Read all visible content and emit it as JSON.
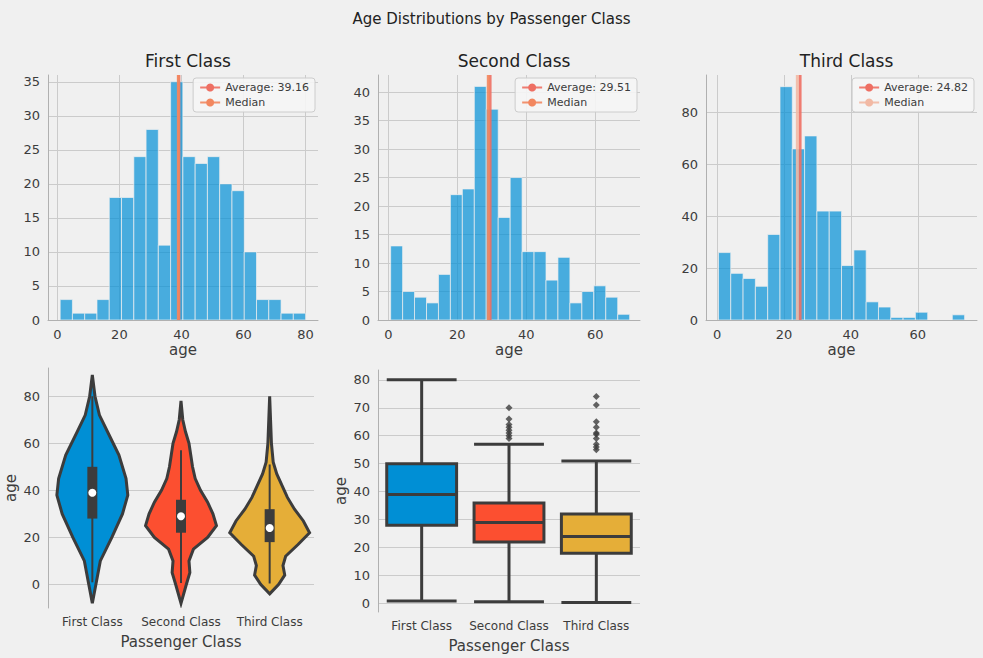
{
  "title": "Age Distributions by Passenger Class",
  "chart_data": [
    {
      "type": "histogram",
      "title": "First Class",
      "xlabel": "age",
      "bins": [
        0.92,
        4.87,
        8.83,
        12.78,
        16.74,
        20.69,
        24.65,
        28.6,
        32.55,
        36.51,
        40.46,
        44.42,
        48.37,
        52.32,
        56.28,
        60.23,
        64.19,
        68.14,
        72.1,
        76.05,
        80.0
      ],
      "counts": [
        3,
        1,
        1,
        3,
        18,
        18,
        24,
        28,
        11,
        35,
        24,
        23,
        24,
        20,
        19,
        10,
        3,
        3,
        1,
        1
      ],
      "color": "#008fd5",
      "xlim": [
        -3,
        84
      ],
      "xticks": [
        0,
        20,
        40,
        60,
        80
      ],
      "ylim": [
        0,
        36
      ],
      "yticks": [
        0,
        5,
        10,
        15,
        20,
        25,
        30,
        35
      ],
      "grid": true,
      "legend": "upper right",
      "reference_lines": [
        {
          "name": "Average: 39.16",
          "value": 39.16,
          "color": "#ee6f63"
        },
        {
          "name": "Median",
          "value": 39,
          "color": "#f2875f"
        }
      ]
    },
    {
      "type": "histogram",
      "title": "Second Class",
      "xlabel": "age",
      "bins": [
        0.67,
        4.14,
        7.6,
        11.07,
        14.54,
        18.0,
        21.47,
        24.94,
        28.4,
        31.87,
        35.34,
        38.8,
        42.27,
        45.74,
        49.2,
        52.67,
        56.14,
        59.6,
        63.07,
        66.54,
        70.0
      ],
      "counts": [
        13,
        5,
        4,
        3,
        8,
        22,
        23,
        41,
        37,
        18,
        25,
        12,
        12,
        7,
        11,
        3,
        5,
        6,
        4,
        1
      ],
      "color": "#008fd5",
      "xlim": [
        -3,
        73
      ],
      "xticks": [
        0,
        20,
        40,
        60
      ],
      "ylim": [
        0,
        43
      ],
      "yticks": [
        0,
        5,
        10,
        15,
        20,
        25,
        30,
        35,
        40
      ],
      "grid": true,
      "legend": "upper right",
      "reference_lines": [
        {
          "name": "Average: 29.51",
          "value": 29.51,
          "color": "#ee6f63"
        },
        {
          "name": "Median",
          "value": 29,
          "color": "#f2875f"
        }
      ]
    },
    {
      "type": "histogram",
      "title": "Third Class",
      "xlabel": "age",
      "bins": [
        0.42,
        4.1,
        7.78,
        11.46,
        15.14,
        18.82,
        22.49,
        26.17,
        29.85,
        33.53,
        37.21,
        40.89,
        44.57,
        48.25,
        51.93,
        55.61,
        59.29,
        62.97,
        66.64,
        70.32,
        74.0
      ],
      "counts": [
        26,
        18,
        16,
        13,
        33,
        90,
        66,
        71,
        42,
        42,
        21,
        27,
        7,
        5,
        1,
        1,
        3,
        0,
        0,
        2
      ],
      "color": "#008fd5",
      "xlim": [
        -3.3,
        77.7
      ],
      "xticks": [
        0,
        20,
        40,
        60
      ],
      "ylim": [
        0,
        94.5
      ],
      "yticks": [
        0,
        20,
        40,
        60,
        80
      ],
      "grid": true,
      "legend": "upper right",
      "reference_lines": [
        {
          "name": "Average: 24.82",
          "value": 24.82,
          "color": "#ee6f63"
        },
        {
          "name": "Median",
          "value": 24,
          "color": "#f2b9a4"
        }
      ]
    },
    {
      "type": "violin",
      "xlabel": "Passenger Class",
      "ylabel": "age",
      "categories": [
        "First Class",
        "Second Class",
        "Third Class"
      ],
      "colors": [
        "#008fd5",
        "#fc4f30",
        "#e5ae38"
      ],
      "ylim": [
        -10,
        92
      ],
      "yticks": [
        0,
        20,
        40,
        60,
        80
      ],
      "grid": true,
      "violins": [
        {
          "age": [
            -8,
            0,
            10,
            20,
            30,
            38,
            45,
            55,
            65,
            72,
            80,
            89
          ],
          "density": [
            0,
            0.04,
            0.09,
            0.22,
            0.34,
            0.4,
            0.38,
            0.3,
            0.17,
            0.08,
            0.03,
            0
          ],
          "whisker_low": 0.92,
          "q1": 28,
          "median": 39,
          "q3": 50,
          "whisker_high": 80
        },
        {
          "age": [
            -8,
            0,
            5,
            10,
            15,
            20,
            25,
            30,
            35,
            40,
            45,
            50,
            55,
            60,
            65,
            70,
            78
          ],
          "density": [
            0,
            0.06,
            0.1,
            0.09,
            0.14,
            0.3,
            0.4,
            0.36,
            0.3,
            0.22,
            0.16,
            0.13,
            0.11,
            0.09,
            0.05,
            0.02,
            0
          ],
          "whisker_low": 0.67,
          "q1": 22,
          "median": 29,
          "q3": 36,
          "whisker_high": 57
        },
        {
          "age": [
            -4,
            0,
            4,
            8,
            12,
            17,
            22,
            27,
            32,
            37,
            42,
            47,
            52,
            60,
            70,
            80
          ],
          "density": [
            0,
            0.1,
            0.17,
            0.15,
            0.18,
            0.32,
            0.45,
            0.38,
            0.28,
            0.2,
            0.14,
            0.08,
            0.04,
            0.02,
            0.01,
            0
          ],
          "whisker_low": 0.42,
          "q1": 18,
          "median": 24,
          "q3": 32,
          "whisker_high": 51
        }
      ]
    },
    {
      "type": "box",
      "xlabel": "Passenger Class",
      "ylabel": "age",
      "categories": [
        "First Class",
        "Second Class",
        "Third Class"
      ],
      "colors": [
        "#008fd5",
        "#fc4f30",
        "#e5ae38"
      ],
      "ylim": [
        -3,
        83.5
      ],
      "yticks": [
        0,
        10,
        20,
        30,
        40,
        50,
        60,
        70,
        80
      ],
      "grid": true,
      "marker": "diamond",
      "boxes": [
        {
          "whisker_low": 0.92,
          "q1": 28,
          "median": 39,
          "q3": 50,
          "whisker_high": 80,
          "outliers": []
        },
        {
          "whisker_low": 0.67,
          "q1": 22,
          "median": 29,
          "q3": 36,
          "whisker_high": 57,
          "outliers": [
            59,
            60,
            61,
            62,
            63,
            64,
            66,
            70
          ]
        },
        {
          "whisker_low": 0.42,
          "q1": 18,
          "median": 24,
          "q3": 32,
          "whisker_high": 51,
          "outliers": [
            55,
            56,
            57,
            59,
            60.5,
            61,
            63,
            65,
            71,
            74
          ]
        }
      ]
    }
  ]
}
